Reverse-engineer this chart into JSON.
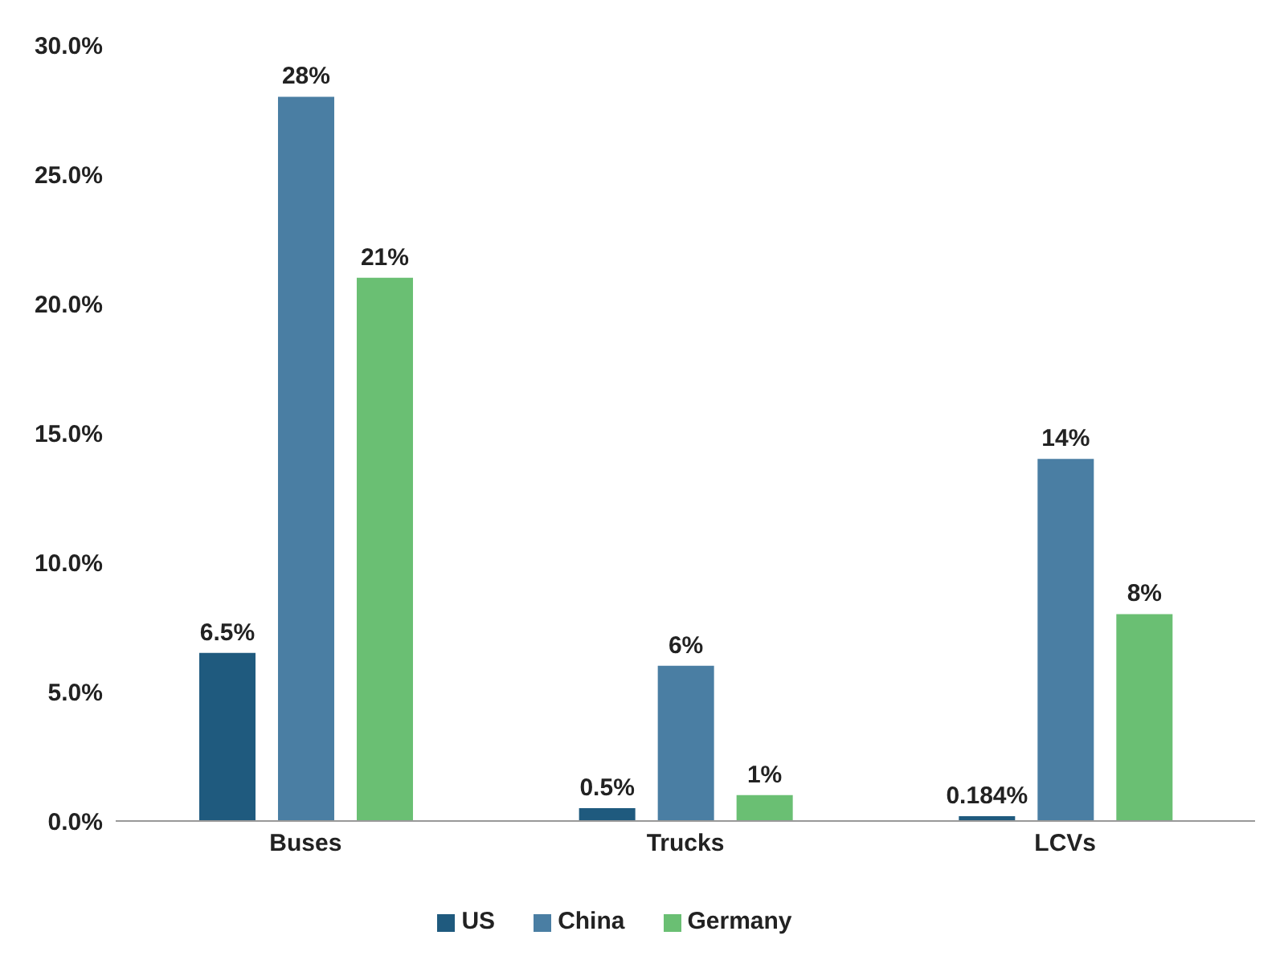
{
  "chart_data": {
    "type": "bar",
    "categories": [
      "Buses",
      "Trucks",
      "LCVs"
    ],
    "series": [
      {
        "name": "US",
        "color": "#1f5a7e",
        "values": [
          6.5,
          0.5,
          0.184
        ],
        "value_labels": [
          "6.5%",
          "0.5%",
          "0.184%"
        ]
      },
      {
        "name": "China",
        "color": "#4a7ea3",
        "values": [
          28,
          6,
          14
        ],
        "value_labels": [
          "28%",
          "6%",
          "14%"
        ]
      },
      {
        "name": "Germany",
        "color": "#6abf73",
        "values": [
          21,
          1,
          8
        ],
        "value_labels": [
          "21%",
          "1%",
          "8%"
        ]
      }
    ],
    "ylim": [
      0,
      30
    ],
    "yticks": [
      {
        "value": 0,
        "label": "0.0%"
      },
      {
        "value": 5,
        "label": "5.0%"
      },
      {
        "value": 10,
        "label": "10.0%"
      },
      {
        "value": 15,
        "label": "15.0%"
      },
      {
        "value": 20,
        "label": "20.0%"
      },
      {
        "value": 25,
        "label": "25.0%"
      },
      {
        "value": 30,
        "label": "30.0%"
      }
    ],
    "grid": false,
    "legend": "bottom"
  }
}
